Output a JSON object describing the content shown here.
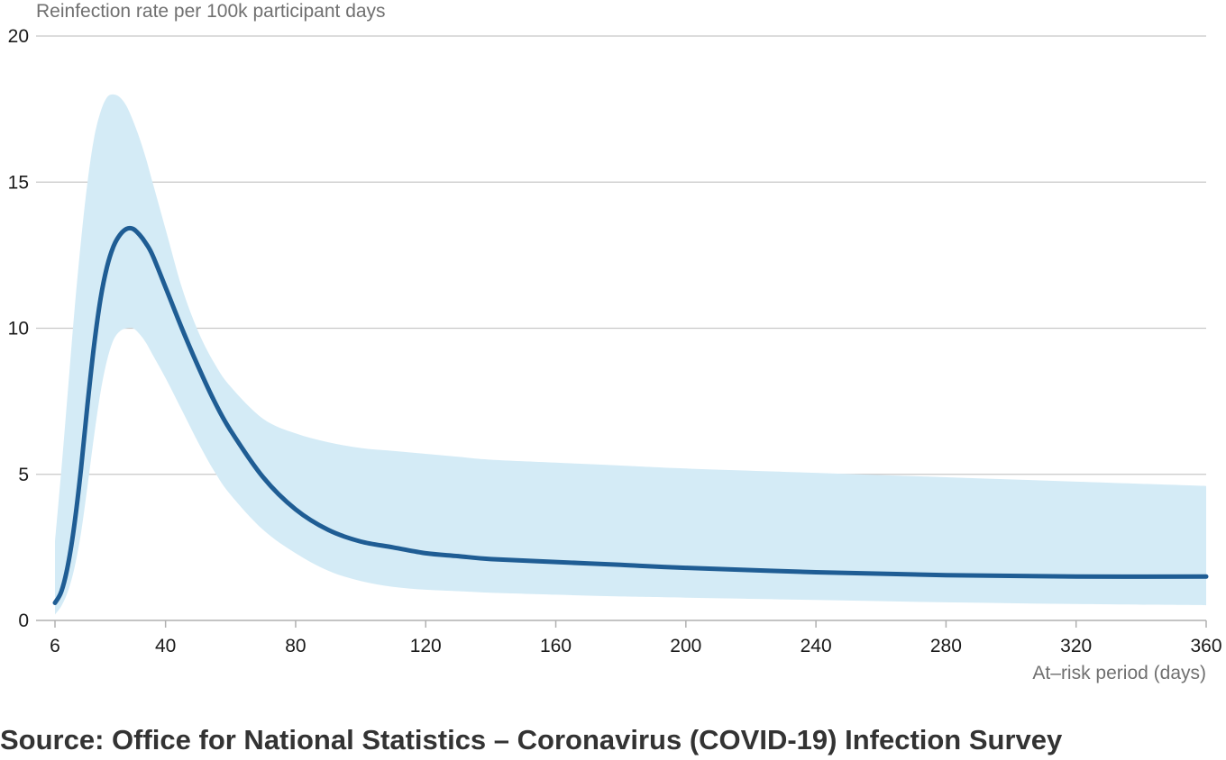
{
  "source_note": "Source: Office for National Statistics – Coronavirus (COVID-19) Infection Survey",
  "colors": {
    "line": "#1f5d94",
    "band": "#d4ebf6",
    "grid": "#c8c8c8",
    "axis": "#b0b0b0"
  },
  "chart_data": {
    "type": "line",
    "title": "",
    "ylabel": "Reinfection rate per 100k participant days",
    "xlabel": "At–risk period (days)",
    "xlim": [
      6,
      360
    ],
    "ylim": [
      0,
      20
    ],
    "x_ticks": [
      6,
      40,
      80,
      120,
      160,
      200,
      240,
      280,
      320,
      360
    ],
    "x_tick_labels": [
      "6",
      "40",
      "80",
      "120",
      "160",
      "200",
      "240",
      "280",
      "320",
      "360"
    ],
    "y_ticks": [
      0,
      5,
      10,
      15,
      20
    ],
    "y_tick_labels": [
      "0",
      "5",
      "10",
      "15",
      "20"
    ],
    "grid": true,
    "series": [
      {
        "role": "estimate",
        "x": [
          6,
          8,
          10,
          12,
          14,
          16,
          18,
          20,
          22,
          24,
          26,
          28,
          30,
          32,
          34,
          36,
          40,
          45,
          50,
          55,
          60,
          70,
          80,
          90,
          100,
          110,
          120,
          130,
          140,
          160,
          180,
          200,
          240,
          280,
          320,
          360
        ],
        "y": [
          0.6,
          1.0,
          1.9,
          3.3,
          5.2,
          7.4,
          9.4,
          11.0,
          12.1,
          12.8,
          13.2,
          13.4,
          13.4,
          13.2,
          12.9,
          12.5,
          11.4,
          10.0,
          8.7,
          7.5,
          6.5,
          4.9,
          3.8,
          3.1,
          2.7,
          2.5,
          2.3,
          2.2,
          2.1,
          2.0,
          1.9,
          1.8,
          1.65,
          1.55,
          1.5,
          1.5
        ]
      }
    ],
    "interval": {
      "x": [
        6,
        8,
        10,
        12,
        14,
        16,
        18,
        20,
        22,
        24,
        26,
        28,
        30,
        32,
        34,
        36,
        40,
        45,
        50,
        55,
        60,
        70,
        80,
        90,
        100,
        110,
        120,
        130,
        140,
        160,
        180,
        200,
        240,
        280,
        320,
        360
      ],
      "lower": [
        0.2,
        0.5,
        1.0,
        1.8,
        3.0,
        4.6,
        6.3,
        7.8,
        8.9,
        9.6,
        9.9,
        10.0,
        10.0,
        9.8,
        9.5,
        9.1,
        8.3,
        7.2,
        6.1,
        5.1,
        4.3,
        3.1,
        2.3,
        1.7,
        1.35,
        1.15,
        1.05,
        1.0,
        0.95,
        0.88,
        0.82,
        0.78,
        0.7,
        0.62,
        0.56,
        0.52
      ],
      "upper": [
        2.7,
        5.2,
        7.9,
        10.6,
        13.0,
        15.0,
        16.5,
        17.4,
        17.9,
        18.0,
        17.9,
        17.6,
        17.1,
        16.5,
        15.8,
        15.0,
        13.4,
        11.4,
        9.9,
        8.8,
        8.0,
        6.9,
        6.4,
        6.1,
        5.9,
        5.8,
        5.7,
        5.6,
        5.5,
        5.4,
        5.3,
        5.2,
        5.05,
        4.9,
        4.75,
        4.6
      ]
    }
  }
}
